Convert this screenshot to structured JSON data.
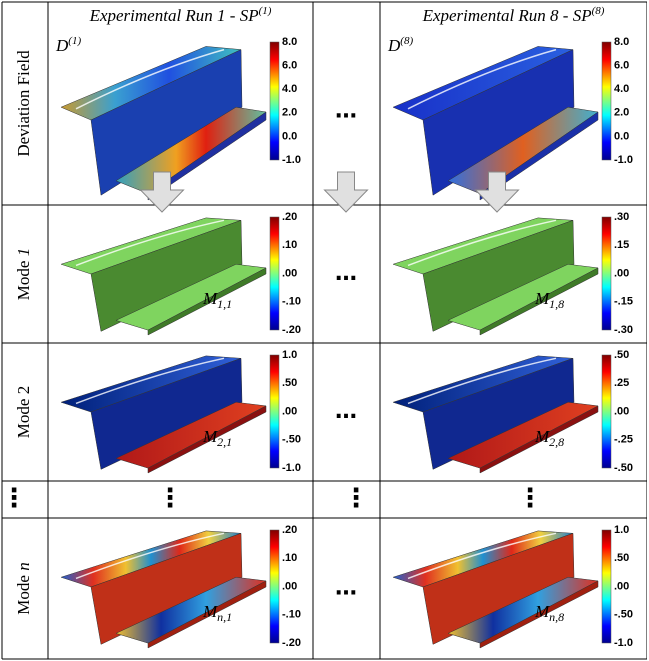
{
  "columns": [
    {
      "text": "Experimental Run 1 - SP",
      "sup": "(1)"
    },
    {
      "text": "Experimental Run 8 - SP",
      "sup": "(8)"
    }
  ],
  "rows": [
    {
      "label": {
        "text": "Deviation Field"
      },
      "ellipsis": "…",
      "cells": [
        {
          "symbol": {
            "main": "D",
            "sup": "(1)"
          },
          "colorbar": [
            "8.0",
            "6.0",
            "4.0",
            "2.0",
            "0.0",
            "-1.0"
          ]
        },
        {
          "symbol": {
            "main": "D",
            "sup": "(8)"
          },
          "colorbar": [
            "8.0",
            "6.0",
            "4.0",
            "2.0",
            "0.0",
            "-1.0"
          ]
        }
      ]
    },
    {
      "label": {
        "text": "Mode ",
        "index": "1"
      },
      "ellipsis": "…",
      "cells": [
        {
          "symbol": {
            "main": "M",
            "sub": "1,1"
          },
          "colorbar": [
            ".20",
            ".10",
            ".00",
            "-.10",
            "-.20"
          ]
        },
        {
          "symbol": {
            "main": "M",
            "sub": "1,8"
          },
          "colorbar": [
            ".30",
            ".15",
            ".00",
            "-.15",
            "-.30"
          ]
        }
      ]
    },
    {
      "label": {
        "text": "Mode 2"
      },
      "ellipsis": "…",
      "cells": [
        {
          "symbol": {
            "main": "M",
            "sub": "2,1"
          },
          "colorbar": [
            "1.0",
            ".50",
            ".00",
            "-.50",
            "-1.0"
          ]
        },
        {
          "symbol": {
            "main": "M",
            "sub": "2,8"
          },
          "colorbar": [
            ".50",
            ".25",
            ".00",
            "-.25",
            "-.50"
          ]
        }
      ]
    },
    {
      "label": {
        "text": "Mode ",
        "index": "n"
      },
      "ellipsis": "…",
      "cells": [
        {
          "symbol": {
            "main": "M",
            "sub": "n,1"
          },
          "colorbar": [
            ".20",
            ".10",
            ".00",
            "-.10",
            "-.20"
          ]
        },
        {
          "symbol": {
            "main": "M",
            "sub": "n,8"
          },
          "colorbar": [
            "1.0",
            ".50",
            ".00",
            "-.50",
            "-1.0"
          ]
        }
      ]
    }
  ],
  "dots_row": {
    "label": "⋮",
    "cells": [
      "⋮",
      "⋮"
    ],
    "middle": "⋮"
  }
}
